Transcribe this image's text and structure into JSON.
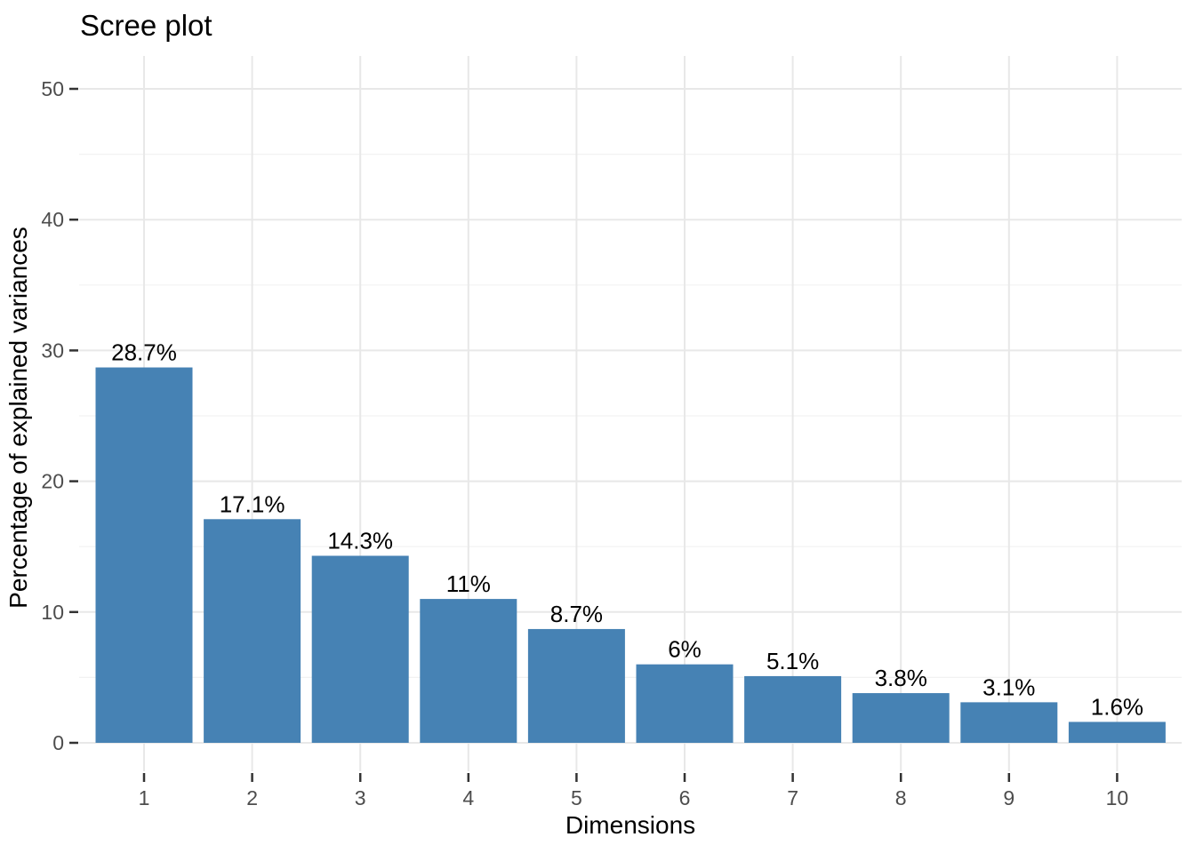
{
  "chart_data": {
    "type": "bar",
    "title": "Scree plot",
    "xlabel": "Dimensions",
    "ylabel": "Percentage of explained variances",
    "categories": [
      "1",
      "2",
      "3",
      "4",
      "5",
      "6",
      "7",
      "8",
      "9",
      "10"
    ],
    "values": [
      28.7,
      17.1,
      14.3,
      11,
      8.7,
      6,
      5.1,
      3.8,
      3.1,
      1.6
    ],
    "bar_labels": [
      "28.7%",
      "17.1%",
      "14.3%",
      "11%",
      "8.7%",
      "6%",
      "5.1%",
      "3.8%",
      "3.1%",
      "1.6%"
    ],
    "ylim": [
      0,
      50
    ],
    "yticks": [
      0,
      10,
      20,
      30,
      40,
      50
    ],
    "yticks_minor": [
      5,
      15,
      25,
      35,
      45
    ],
    "grid": "on",
    "legend": "none",
    "colors": {
      "bar_fill": "#4682B4",
      "title_text": "#000000",
      "axis_title_text": "#000000",
      "tick_label_text": "#4D4D4D",
      "tick_mark": "#333333",
      "grid_major": "#E8E8E8",
      "grid_minor": "#F2F2F2",
      "value_label_text": "#000000",
      "background": "#FFFFFF"
    }
  }
}
